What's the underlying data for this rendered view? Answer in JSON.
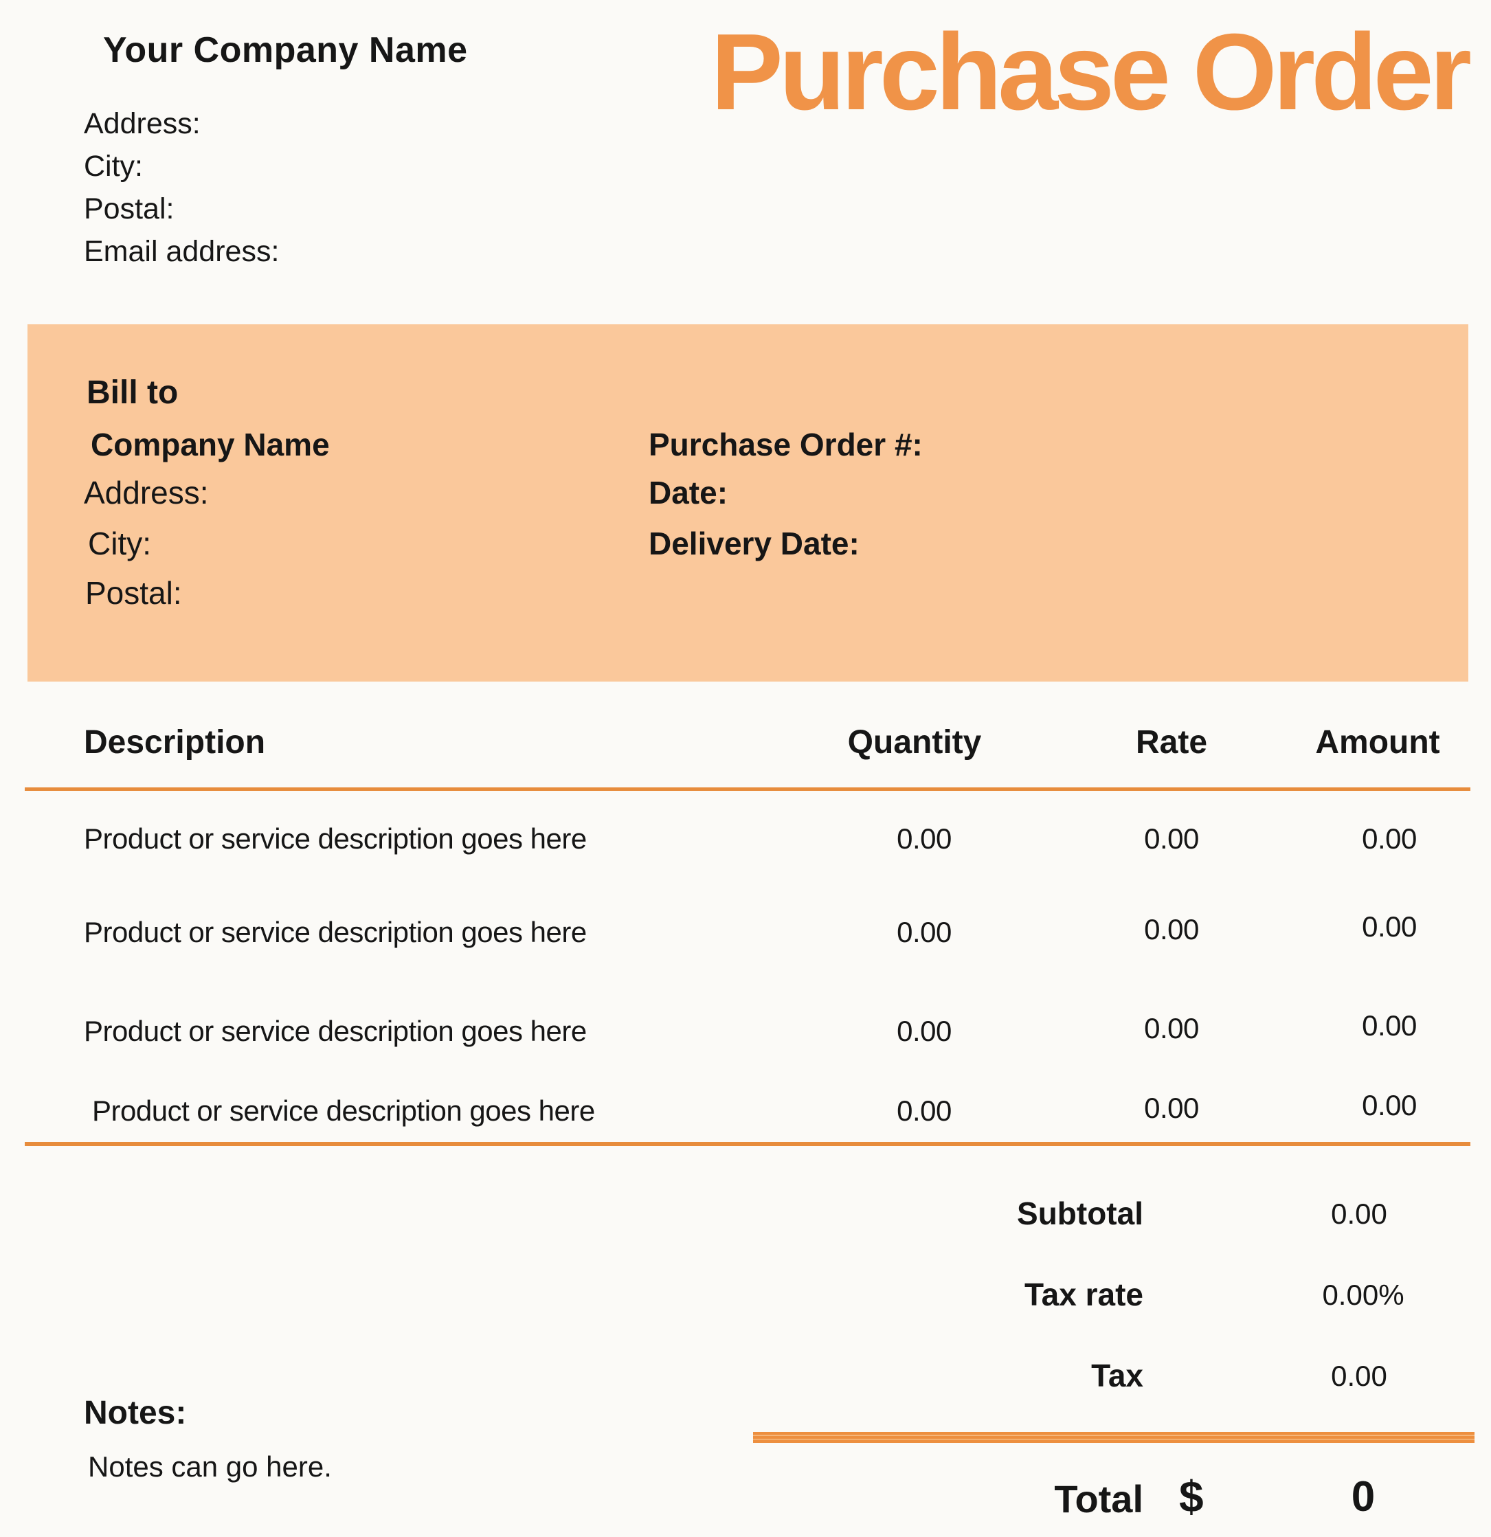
{
  "colors": {
    "accent_orange": "#F09348",
    "rule_orange": "#E78C3C",
    "banner_peach": "#FAC89B",
    "page_background": "#FBFAF7",
    "text": "#161616"
  },
  "header": {
    "company_name": "Your Company Name",
    "address_label": "Address:",
    "city_label": "City:",
    "postal_label": "Postal:",
    "email_label": "Email address:",
    "doc_title": "Purchase Order"
  },
  "bill_to": {
    "heading": "Bill to",
    "company_label": "Company Name",
    "address_label": "Address:",
    "city_label": "City:",
    "postal_label": "Postal:"
  },
  "order_info": {
    "po_number_label": "Purchase Order #:",
    "date_label": "Date:",
    "delivery_date_label": "Delivery Date:"
  },
  "table": {
    "headers": {
      "description": "Description",
      "quantity": "Quantity",
      "rate": "Rate",
      "amount": "Amount"
    },
    "rows": [
      {
        "description": "Product or service description goes here",
        "quantity": "0.00",
        "rate": "0.00",
        "amount": "0.00"
      },
      {
        "description": "Product or service description goes here",
        "quantity": "0.00",
        "rate": "0.00",
        "amount": "0.00"
      },
      {
        "description": "Product or service description goes here",
        "quantity": "0.00",
        "rate": "0.00",
        "amount": "0.00"
      },
      {
        "description": "Product or service description goes here",
        "quantity": "0.00",
        "rate": "0.00",
        "amount": "0.00"
      }
    ]
  },
  "totals": {
    "subtotal_label": "Subtotal",
    "subtotal_value": "0.00",
    "tax_rate_label": "Tax rate",
    "tax_rate_value": "0.00%",
    "tax_label": "Tax",
    "tax_value": "0.00"
  },
  "notes": {
    "label": "Notes:",
    "text": "Notes can go here."
  },
  "grand_total": {
    "label": "Total",
    "currency": "$",
    "value": "0"
  }
}
